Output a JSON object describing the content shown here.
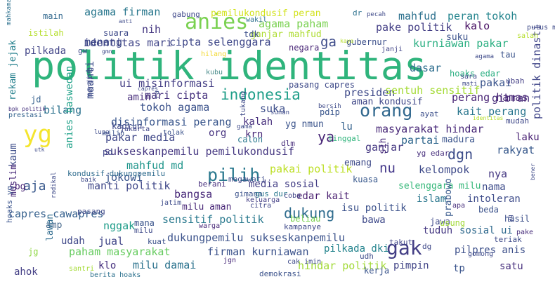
{
  "words": [
    {
      "text": "politik identitas",
      "color": "#2fb47c"
    },
    {
      "text": "yg",
      "color": "#f4e52e"
    },
    {
      "text": "gak",
      "color": "#433e85"
    },
    {
      "text": "anies",
      "color": "#7ad151"
    },
    {
      "text": "orang",
      "color": "#31688e"
    },
    {
      "text": "pilih",
      "color": "#2a788e"
    },
    {
      "text": "dukung",
      "color": "#2f6c8e"
    },
    {
      "text": "indonesia",
      "color": "#1f9e89"
    },
    {
      "text": "aja",
      "color": "#38588c"
    },
    {
      "text": "ya",
      "color": "#482677"
    },
    {
      "text": "dgn",
      "color": "#3d4d8a"
    },
    {
      "text": "nu",
      "color": "#44388a"
    },
    {
      "text": "agama firman",
      "color": "#2a788e"
    },
    {
      "text": "menang",
      "color": "#3e4a89"
    },
    {
      "text": "nih",
      "color": "#453781"
    },
    {
      "text": "identitas mari",
      "color": "#404588"
    },
    {
      "text": "cipta selenggara",
      "color": "#3f4889"
    },
    {
      "text": "ga",
      "color": "#3e4c8a"
    },
    {
      "text": "agama paham",
      "color": "#7ad151"
    },
    {
      "text": "pake politik",
      "color": "#433e85"
    },
    {
      "text": "mahfud",
      "color": "#2d718e"
    },
    {
      "text": "peran tokoh",
      "color": "#25858e"
    },
    {
      "text": "kalo",
      "color": "#471063"
    },
    {
      "text": "kurniawan pakar",
      "color": "#28ae80"
    },
    {
      "text": "suku",
      "color": "#3b528b"
    },
    {
      "text": "pilkada",
      "color": "#414487"
    },
    {
      "text": "ui misinformasi",
      "color": "#433d84"
    },
    {
      "text": "mari cipta",
      "color": "#46327e"
    },
    {
      "text": "amin",
      "color": "#472d7b"
    },
    {
      "text": "bilang",
      "color": "#2c728e"
    },
    {
      "text": "tokoh agama",
      "color": "#3b528b"
    },
    {
      "text": "presiden",
      "color": "#3e4989"
    },
    {
      "text": "sentuh sensitif",
      "color": "#a5db36"
    },
    {
      "text": "partai",
      "color": "#31688e"
    },
    {
      "text": "pakai",
      "color": "#3a548c"
    },
    {
      "text": "gibran",
      "color": "#472c7a"
    },
    {
      "text": "dasar",
      "color": "#2e6e8e"
    },
    {
      "text": "perang hamas",
      "color": "#482475"
    },
    {
      "text": "kait perang",
      "color": "#2a768e"
    },
    {
      "text": "aman kondusif",
      "color": "#3f4788"
    },
    {
      "text": "suka",
      "color": "#3d4e8a"
    },
    {
      "text": "kalah",
      "color": "#472f7d"
    },
    {
      "text": "disinformasi perang",
      "color": "#39568c"
    },
    {
      "text": "pakar media",
      "color": "#3f4788"
    },
    {
      "text": "org",
      "color": "#46337f"
    },
    {
      "text": "krn",
      "color": "#482878"
    },
    {
      "text": "yg nmun",
      "color": "#3a538b"
    },
    {
      "text": "lu",
      "color": "#34618d"
    },
    {
      "text": "masyarakat hindar",
      "color": "#482878"
    },
    {
      "text": "ganjar",
      "color": "#453882"
    },
    {
      "text": "sukseskanpemilu pemilukondusif",
      "color": "#453781"
    },
    {
      "text": "madura",
      "color": "#3a548c"
    },
    {
      "text": "laku",
      "color": "#482173"
    },
    {
      "text": "rakyat",
      "color": "#38598c"
    },
    {
      "text": "mahfud md",
      "color": "#1f958b"
    },
    {
      "text": "jokowi",
      "color": "#39558c"
    },
    {
      "text": "manti politik",
      "color": "#3f4788"
    },
    {
      "text": "pakai politik",
      "color": "#bddf26"
    },
    {
      "text": "kelompok",
      "color": "#3e4a89"
    },
    {
      "text": "nya",
      "color": "#453882"
    },
    {
      "text": "bangsa",
      "color": "#482979"
    },
    {
      "text": "media sosial",
      "color": "#433e85"
    },
    {
      "text": "edar kait",
      "color": "#481d6f"
    },
    {
      "text": "selenggara milu",
      "color": "#35b779"
    },
    {
      "text": "nama",
      "color": "#3e4c8a"
    },
    {
      "text": "milu aman",
      "color": "#482677"
    },
    {
      "text": "isu politik",
      "color": "#3b518b"
    },
    {
      "text": "islam",
      "color": "#2a778e"
    },
    {
      "text": "intoleran",
      "color": "#3e4c8a"
    },
    {
      "text": "sensitif politik",
      "color": "#29798e"
    },
    {
      "text": "capres cawapres",
      "color": "#35608d"
    },
    {
      "text": "amp",
      "color": "#4a6b8e"
    },
    {
      "text": "nggak",
      "color": "#1e9c89"
    },
    {
      "text": "dukungpemilu sukseskanpemilu",
      "color": "#3b528b"
    },
    {
      "text": "bawa",
      "color": "#3e4989"
    },
    {
      "text": "sosial ui",
      "color": "#306a8e"
    },
    {
      "text": "tuduh",
      "color": "#453882"
    },
    {
      "text": "udah",
      "color": "#3f4889"
    },
    {
      "text": "jual",
      "color": "#404688"
    },
    {
      "text": "paham masyarakat",
      "color": "#65cb5e"
    },
    {
      "text": "firman kurniawan",
      "color": "#3b528b"
    },
    {
      "text": "pilkada dki",
      "color": "#25848e"
    },
    {
      "text": "pilpres anis",
      "color": "#3c4f8a"
    },
    {
      "text": "hindar politik",
      "color": "#a2da37"
    },
    {
      "text": "klo",
      "color": "#46307e"
    },
    {
      "text": "milu damai",
      "color": "#2c738e"
    },
    {
      "text": "ahok",
      "color": "#433e85"
    },
    {
      "text": "pimpin",
      "color": "#414487"
    },
    {
      "text": "tp",
      "color": "#3a548c"
    },
    {
      "text": "satu",
      "color": "#472f7d"
    },
    {
      "text": "prabowo",
      "color": "#38598c"
    },
    {
      "text": "politik dinasti",
      "color": "#404588"
    },
    {
      "text": "sih",
      "color": "#472a7a"
    },
    {
      "text": "anies baswedan",
      "color": "#1fa188"
    },
    {
      "text": "maanti",
      "color": "#3d4e8a"
    },
    {
      "text": "rekam jejak",
      "color": "#26818e"
    },
    {
      "text": "kaum",
      "color": "#3d4d8a"
    },
    {
      "text": "sbg",
      "color": "#482475"
    },
    {
      "text": "muslim",
      "color": "#482979"
    },
    {
      "text": "lawan",
      "color": "#2f6b8e"
    },
    {
      "text": "jg",
      "color": "#8fd744"
    },
    {
      "text": "hoaks yg",
      "color": "#3a548c"
    },
    {
      "text": "ganjar mahfud",
      "color": "#addc30"
    },
    {
      "text": "pemilukondusif peran",
      "color": "#d2e21b"
    },
    {
      "text": "istilah",
      "color": "#b5de2b"
    },
    {
      "text": "main",
      "color": "#31688e"
    },
    {
      "text": "suara",
      "color": "#3e4a89"
    },
    {
      "text": "gabung",
      "color": "#3f4889"
    },
    {
      "text": "wakil",
      "color": "#2e6f8e"
    },
    {
      "text": "tdk",
      "color": "#3c4f8a"
    },
    {
      "text": "negara",
      "color": "#482576"
    },
    {
      "text": "gubernur",
      "color": "#3c4f8a"
    },
    {
      "text": "janji",
      "color": "#414487"
    },
    {
      "text": "tau",
      "color": "#3a538b"
    },
    {
      "text": "mahkamah keluarga",
      "color": "#2d718e"
    },
    {
      "text": "bpk politik",
      "color": "#46327e"
    },
    {
      "text": "prestasi",
      "color": "#33638d"
    },
    {
      "text": "jd",
      "color": "#35608d"
    },
    {
      "text": "kubu",
      "color": "#4a8c8c"
    },
    {
      "text": "hilang",
      "color": "#f2d830"
    },
    {
      "text": "pasang capres",
      "color": "#3e4a89"
    },
    {
      "text": "hoaks edar",
      "color": "#28ae80"
    },
    {
      "text": "ubah",
      "color": "#433e85"
    },
    {
      "text": "pdip",
      "color": "#39568c"
    },
    {
      "text": "tinggal",
      "color": "#2fb47c"
    },
    {
      "text": "emang",
      "color": "#3e4a89"
    },
    {
      "text": "ayat",
      "color": "#3c4f8a"
    },
    {
      "text": "mudah",
      "color": "#3f4889"
    },
    {
      "text": "yg edar",
      "color": "#472f7d"
    },
    {
      "text": "kadrun",
      "color": "#3e4989"
    },
    {
      "text": "tolak",
      "color": "#3b528b"
    },
    {
      "text": "milih",
      "color": "#3a548c"
    },
    {
      "text": "jakarta",
      "color": "#404588"
    },
    {
      "text": "dlm",
      "color": "#472d7b"
    },
    {
      "text": "calon",
      "color": "#2a788e"
    },
    {
      "text": "pd",
      "color": "#404688"
    },
    {
      "text": "kondusif dukungpemilu",
      "color": "#2f6c8e"
    },
    {
      "text": "berani",
      "color": "#472f7d"
    },
    {
      "text": "megawati",
      "color": "#3e4a89"
    },
    {
      "text": "kuasa",
      "color": "#38588c"
    },
    {
      "text": "beliau",
      "color": "#7ad151"
    },
    {
      "text": "gimana",
      "color": "#3b528b"
    },
    {
      "text": "gus dur",
      "color": "#2a788e"
    },
    {
      "text": "keluarga",
      "color": "#433e85"
    },
    {
      "text": "coba",
      "color": "#404588"
    },
    {
      "text": "jatim",
      "color": "#3e4c8a"
    },
    {
      "text": "citra",
      "color": "#3f4788"
    },
    {
      "text": "apa",
      "color": "#472f7d"
    },
    {
      "text": "beda",
      "color": "#3b528b"
    },
    {
      "text": "hasil",
      "color": "#3c4f8a"
    },
    {
      "text": "jawa",
      "color": "#3e4989"
    },
    {
      "text": "usung",
      "color": "#a2da37"
    },
    {
      "text": "pake",
      "color": "#472d7b"
    },
    {
      "text": "mana",
      "color": "#3a548c"
    },
    {
      "text": "milu",
      "color": "#3e4a89"
    },
    {
      "text": "warga",
      "color": "#482878"
    },
    {
      "text": "kampanye",
      "color": "#3e4989"
    },
    {
      "text": "kuat",
      "color": "#3b528b"
    },
    {
      "text": "teriak",
      "color": "#3e4a89"
    },
    {
      "text": "takut",
      "color": "#404588"
    },
    {
      "text": "dg",
      "color": "#3f4889"
    },
    {
      "text": "udh",
      "color": "#3e4c8a"
    },
    {
      "text": "kerja",
      "color": "#3a548c"
    },
    {
      "text": "jgn",
      "color": "#482979"
    },
    {
      "text": "cak imin",
      "color": "#3e4a89"
    },
    {
      "text": "santri",
      "color": "#a5db36"
    },
    {
      "text": "berita hoaks",
      "color": "#2d718e"
    },
    {
      "text": "demokrasi",
      "color": "#3b528b"
    },
    {
      "text": "gomong",
      "color": "#3e4a89"
    },
    {
      "text": "dr",
      "color": "#2d718e"
    },
    {
      "text": "pecah",
      "color": "#3e4a89"
    },
    {
      "text": "putus mk",
      "color": "#3e4a89"
    },
    {
      "text": "salah",
      "color": "#b5de2b"
    },
    {
      "text": "gw",
      "color": "#3e4a89"
    },
    {
      "text": "gmn",
      "color": "#3e4a89"
    },
    {
      "text": "anti",
      "color": "#3e4a89"
    },
    {
      "text": "kaya",
      "color": "#b5de2b"
    },
    {
      "text": "agama",
      "color": "#3e4a89"
    },
    {
      "text": "sara",
      "color": "#3e4a89"
    },
    {
      "text": "mati",
      "color": "#3e4a89"
    },
    {
      "text": "capres",
      "color": "#3e4a89"
    },
    {
      "text": "ra",
      "color": "#3e4a89"
    },
    {
      "text": "mending",
      "color": "#3e4a89"
    },
    {
      "text": "bersih",
      "color": "#3e4a89"
    },
    {
      "text": "identitas",
      "color": "#b5de2b"
    },
    {
      "text": "utk",
      "color": "#3e4a89"
    },
    {
      "text": "lupa",
      "color": "#3e4a89"
    },
    {
      "text": "radikal",
      "color": "#3e4a89"
    },
    {
      "text": "baik",
      "color": "#3e4a89"
    },
    {
      "text": "pasang",
      "color": "#3e4a89"
    },
    {
      "text": "bener",
      "color": "#3e4a89"
    },
    {
      "text": "tukang",
      "color": "#3e4a89"
    },
    {
      "text": "yg",
      "color": "#3e4a89"
    },
    {
      "text": "gama",
      "color": "#3e4a89"
    },
    {
      "text": "sunan",
      "color": "#3e4a89"
    }
  ]
}
